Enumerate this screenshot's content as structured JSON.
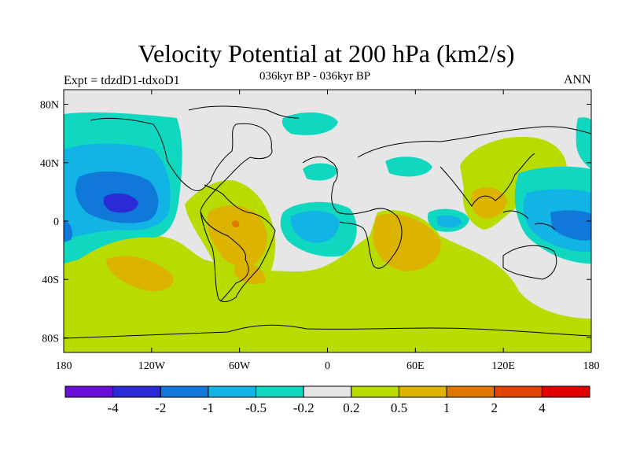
{
  "title": "Velocity Potential at 200 hPa (km2/s)",
  "subtitle": "036kyr BP - 036kyr BP",
  "left_label": "Expt = tdzdD1-tdxoD1",
  "right_label": "ANN",
  "map": {
    "projection": "cylindrical equidistant",
    "lon_range": [
      -180,
      180
    ],
    "lat_range": [
      -90,
      90
    ],
    "x_ticks": [
      "180",
      "120W",
      "60W",
      "0",
      "60E",
      "120E",
      "180"
    ],
    "y_ticks": [
      "80N",
      "40N",
      "0",
      "40S",
      "80S"
    ]
  },
  "colorbar": {
    "labels": [
      "-4",
      "-2",
      "-1",
      "-0.5",
      "-0.2",
      "0.2",
      "0.5",
      "1",
      "2",
      "4"
    ],
    "colors": [
      "#6a0fd8",
      "#2a2ad6",
      "#0f78d8",
      "#12b4e6",
      "#10d8c0",
      "#e6e6e6",
      "#b8dc00",
      "#dcb400",
      "#e07800",
      "#e04400",
      "#e00000"
    ]
  },
  "colors": {
    "ocean_neutral": "#e6e6e6",
    "coast": "#000000"
  }
}
